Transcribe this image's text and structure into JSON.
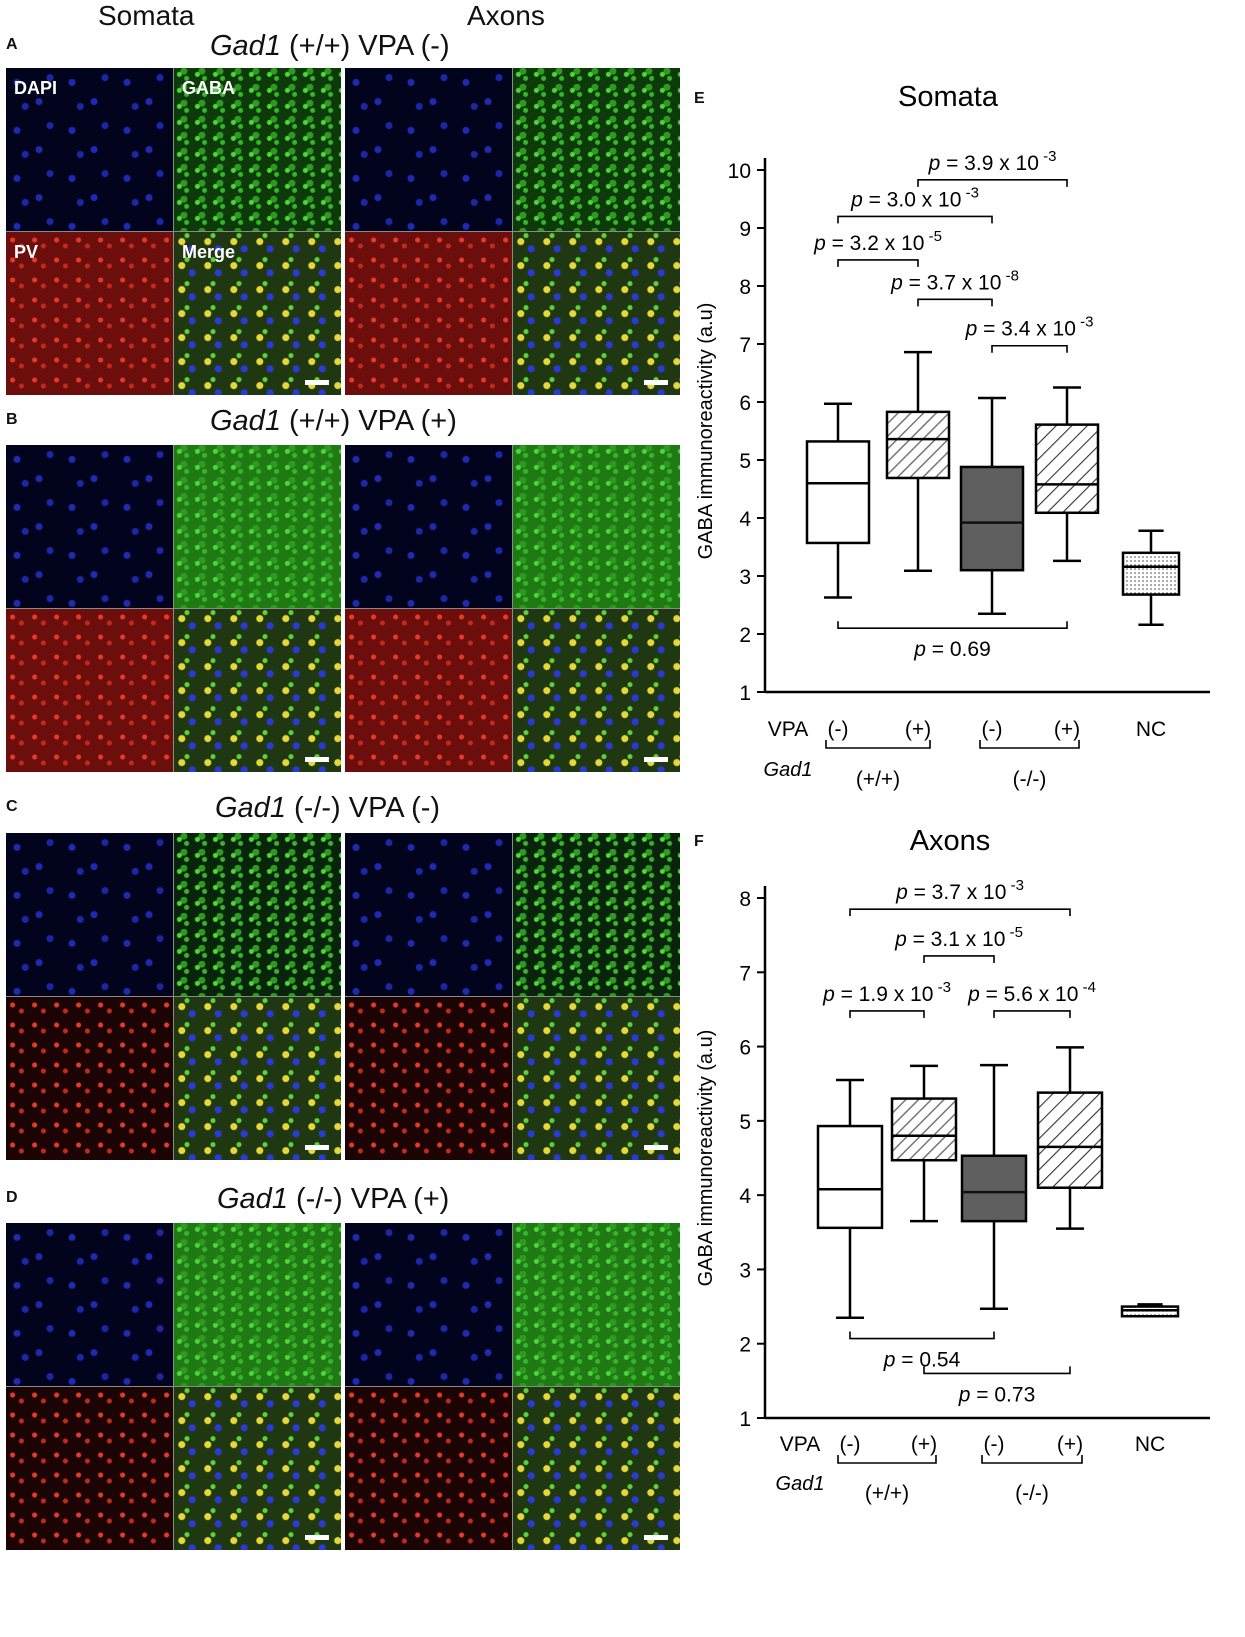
{
  "panels_left": {
    "column_headers": [
      "Somata",
      "Axons"
    ],
    "rows": [
      {
        "letter": "A",
        "gene": "Gad1",
        "rest": " (+/+) VPA (-)"
      },
      {
        "letter": "B",
        "gene": "Gad1",
        "rest": " (+/+) VPA (+)"
      },
      {
        "letter": "C",
        "gene": "Gad1",
        "rest": " (-/-) VPA (-)"
      },
      {
        "letter": "D",
        "gene": "Gad1",
        "rest": " (-/-) VPA (+)"
      }
    ],
    "channel_labels": [
      "DAPI",
      "GABA",
      "PV",
      "Merge"
    ]
  },
  "chart_data": [
    {
      "panel": "E",
      "type": "box",
      "title": "Somata",
      "ylabel": "GABA immunoreactivity (a.u)",
      "ylim": [
        1,
        10
      ],
      "yticks": [
        1,
        2,
        3,
        4,
        5,
        6,
        7,
        8,
        9,
        10
      ],
      "row1_label": "VPA",
      "row2_label": "Gad1",
      "vpa_labels": [
        "(-)",
        "(+)",
        "(-)",
        "(+)",
        "NC"
      ],
      "genotype_labels": [
        "(+/+)",
        "(-/-)"
      ],
      "boxes": [
        {
          "group": "(+/+) VPA (-)",
          "min": 2.63,
          "q1": 3.57,
          "median": 4.6,
          "q3": 5.32,
          "max": 5.97,
          "fill": "white"
        },
        {
          "group": "(+/+) VPA (+)",
          "min": 3.09,
          "q1": 4.69,
          "median": 5.36,
          "q3": 5.83,
          "max": 6.86,
          "fill": "light-hatch"
        },
        {
          "group": "(-/-) VPA (-)",
          "min": 2.35,
          "q1": 3.1,
          "median": 3.92,
          "q3": 4.88,
          "max": 6.07,
          "fill": "dark"
        },
        {
          "group": "(-/-) VPA (+)",
          "min": 3.26,
          "q1": 4.09,
          "median": 4.58,
          "q3": 5.61,
          "max": 6.25,
          "fill": "hatch"
        },
        {
          "group": "NC",
          "min": 2.16,
          "q1": 2.68,
          "median": 3.16,
          "q3": 3.4,
          "max": 3.78,
          "fill": "dots"
        }
      ],
      "comparisons": [
        {
          "label": "p = 3.9 x 10",
          "exp": "-3",
          "from": 1,
          "to": 3,
          "y": 9.83,
          "pos": "above"
        },
        {
          "label": "p = 3.0 x 10",
          "exp": "-3",
          "from": 0,
          "to": 2,
          "y": 9.2,
          "pos": "above"
        },
        {
          "label": "p = 3.2 x 10",
          "exp": "-5",
          "from": 0,
          "to": 1,
          "y": 8.45,
          "pos": "above"
        },
        {
          "label": "p = 3.7 x 10",
          "exp": "-8",
          "from": 1,
          "to": 2,
          "y": 7.77,
          "pos": "above"
        },
        {
          "label": "p = 3.4 x 10",
          "exp": "-3",
          "from": 2,
          "to": 3,
          "y": 6.97,
          "pos": "above"
        },
        {
          "label": "p = 0.69",
          "exp": "",
          "from": 0,
          "to": 3,
          "y": 2.1,
          "pos": "below"
        }
      ]
    },
    {
      "panel": "F",
      "type": "box",
      "title": "Axons",
      "ylabel": "GABA immunoreactivity (a.u)",
      "ylim": [
        1,
        8
      ],
      "yticks": [
        1,
        2,
        3,
        4,
        5,
        6,
        7,
        8
      ],
      "row1_label": "VPA",
      "row2_label": "Gad1",
      "vpa_labels": [
        "(-)",
        "(+)",
        "(-)",
        "(+)",
        "NC"
      ],
      "genotype_labels": [
        "(+/+)",
        "(-/-)"
      ],
      "boxes": [
        {
          "group": "(+/+) VPA (-)",
          "min": 2.35,
          "q1": 3.56,
          "median": 4.08,
          "q3": 4.93,
          "max": 5.55,
          "fill": "white"
        },
        {
          "group": "(+/+) VPA (+)",
          "min": 3.65,
          "q1": 4.47,
          "median": 4.8,
          "q3": 5.3,
          "max": 5.74,
          "fill": "light-hatch"
        },
        {
          "group": "(-/-) VPA (-)",
          "min": 2.47,
          "q1": 3.65,
          "median": 4.04,
          "q3": 4.53,
          "max": 5.75,
          "fill": "dark"
        },
        {
          "group": "(-/-) VPA (+)",
          "min": 3.55,
          "q1": 4.1,
          "median": 4.65,
          "q3": 5.38,
          "max": 5.99,
          "fill": "hatch"
        },
        {
          "group": "NC",
          "min": 2.37,
          "q1": 2.37,
          "median": 2.45,
          "q3": 2.5,
          "max": 2.53,
          "fill": "dots"
        }
      ],
      "comparisons": [
        {
          "label": "p = 3.7 x 10",
          "exp": "-3",
          "from": 0,
          "to": 3,
          "y": 7.85,
          "pos": "above"
        },
        {
          "label": "p = 3.1 x 10",
          "exp": "-5",
          "from": 1,
          "to": 2,
          "y": 7.22,
          "pos": "above"
        },
        {
          "label": "p = 1.9 x 10",
          "exp": "-3",
          "from": 0,
          "to": 1,
          "y": 6.48,
          "pos": "above"
        },
        {
          "label": "p = 5.6 x 10",
          "exp": "-4",
          "from": 2,
          "to": 3,
          "y": 6.48,
          "pos": "above"
        },
        {
          "label": "p = 0.54",
          "exp": "",
          "from": 0,
          "to": 2,
          "y": 2.07,
          "pos": "below"
        },
        {
          "label": "p = 0.73",
          "exp": "",
          "from": 1,
          "to": 3,
          "y": 1.6,
          "pos": "below"
        }
      ]
    }
  ]
}
